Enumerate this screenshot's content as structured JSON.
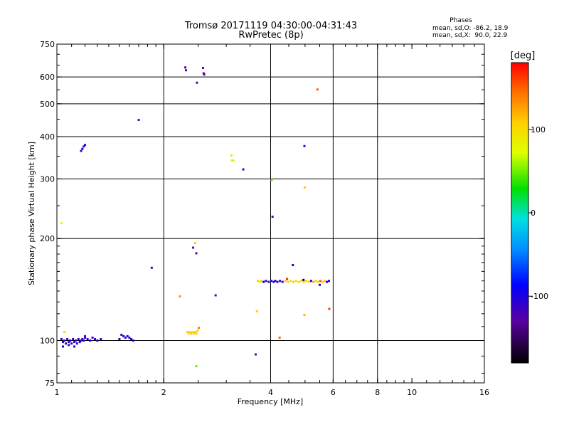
{
  "chart_data": {
    "type": "scatter",
    "title": "Tromsø 20171119 04:30:00-04:31:43",
    "subtitle": "RwPretec (8p)",
    "xlabel": "Frequency [MHz]",
    "ylabel": "Stationary phase Virtual Height [km]",
    "x_scale": "log",
    "y_scale": "log",
    "xlim": [
      1,
      16
    ],
    "ylim": [
      75,
      750
    ],
    "x_ticks": [
      1,
      2,
      4,
      6,
      8,
      10,
      16
    ],
    "x_tick_labels": [
      "1",
      "2",
      "4",
      "6",
      "8",
      "10",
      "16"
    ],
    "x_gridlines": [
      2,
      4,
      6,
      8
    ],
    "y_ticks": [
      75,
      100,
      200,
      300,
      400,
      500,
      600,
      750
    ],
    "y_tick_labels": [
      "75",
      "100",
      "200",
      "300",
      "400",
      "500",
      "600",
      "750"
    ],
    "y_gridlines": [
      100,
      200,
      300,
      400,
      500,
      600
    ],
    "grid": true,
    "phase_box": {
      "heading": "Phases",
      "line_o": "mean, sd,O: -86.2, 18.9",
      "line_x": "mean, sd,X:  90.0, 22.9"
    },
    "colorbar": {
      "label": "[deg]",
      "range": [
        -180,
        180
      ],
      "ticks": [
        100,
        0,
        -100
      ],
      "tick_labels": [
        "100",
        "0",
        "-100"
      ]
    },
    "points": [
      {
        "x": 1.03,
        "y": 101,
        "phase": -110
      },
      {
        "x": 1.04,
        "y": 99,
        "phase": -105
      },
      {
        "x": 1.05,
        "y": 100,
        "phase": -115
      },
      {
        "x": 1.06,
        "y": 98,
        "phase": -100
      },
      {
        "x": 1.07,
        "y": 101,
        "phase": -120
      },
      {
        "x": 1.08,
        "y": 99,
        "phase": -110
      },
      {
        "x": 1.09,
        "y": 100,
        "phase": -95
      },
      {
        "x": 1.1,
        "y": 98,
        "phase": -108
      },
      {
        "x": 1.11,
        "y": 101,
        "phase": -112
      },
      {
        "x": 1.12,
        "y": 99,
        "phase": -102
      },
      {
        "x": 1.13,
        "y": 100,
        "phase": -118
      },
      {
        "x": 1.14,
        "y": 98,
        "phase": -104
      },
      {
        "x": 1.15,
        "y": 101,
        "phase": -110
      },
      {
        "x": 1.16,
        "y": 99,
        "phase": -96
      },
      {
        "x": 1.17,
        "y": 100,
        "phase": -106
      },
      {
        "x": 1.18,
        "y": 101,
        "phase": -112
      },
      {
        "x": 1.19,
        "y": 100,
        "phase": -100
      },
      {
        "x": 1.2,
        "y": 102,
        "phase": -108
      },
      {
        "x": 1.22,
        "y": 101,
        "phase": -104
      },
      {
        "x": 1.24,
        "y": 100,
        "phase": -98
      },
      {
        "x": 1.26,
        "y": 102,
        "phase": -106
      },
      {
        "x": 1.28,
        "y": 101,
        "phase": -110
      },
      {
        "x": 1.3,
        "y": 100,
        "phase": -102
      },
      {
        "x": 1.33,
        "y": 101,
        "phase": -108
      },
      {
        "x": 1.04,
        "y": 96,
        "phase": -110
      },
      {
        "x": 1.08,
        "y": 97,
        "phase": -118
      },
      {
        "x": 1.12,
        "y": 96,
        "phase": -112
      },
      {
        "x": 1.05,
        "y": 106,
        "phase": 100
      },
      {
        "x": 1.2,
        "y": 103,
        "phase": -130
      },
      {
        "x": 1.52,
        "y": 104,
        "phase": -110
      },
      {
        "x": 1.54,
        "y": 103,
        "phase": -100
      },
      {
        "x": 1.56,
        "y": 102,
        "phase": -108
      },
      {
        "x": 1.58,
        "y": 103,
        "phase": -104
      },
      {
        "x": 1.6,
        "y": 102,
        "phase": -112
      },
      {
        "x": 1.62,
        "y": 101,
        "phase": -106
      },
      {
        "x": 1.64,
        "y": 100,
        "phase": -98
      },
      {
        "x": 1.5,
        "y": 101,
        "phase": -115
      },
      {
        "x": 1.03,
        "y": 222,
        "phase": 80
      },
      {
        "x": 1.17,
        "y": 363,
        "phase": -110
      },
      {
        "x": 1.18,
        "y": 368,
        "phase": -105
      },
      {
        "x": 1.19,
        "y": 374,
        "phase": -115
      },
      {
        "x": 1.2,
        "y": 378,
        "phase": -100
      },
      {
        "x": 1.7,
        "y": 448,
        "phase": -130
      },
      {
        "x": 1.85,
        "y": 164,
        "phase": -120
      },
      {
        "x": 2.22,
        "y": 135,
        "phase": 130
      },
      {
        "x": 2.33,
        "y": 106,
        "phase": 105
      },
      {
        "x": 2.35,
        "y": 105,
        "phase": 110
      },
      {
        "x": 2.37,
        "y": 106,
        "phase": 98
      },
      {
        "x": 2.39,
        "y": 105,
        "phase": 112
      },
      {
        "x": 2.41,
        "y": 106,
        "phase": 104
      },
      {
        "x": 2.43,
        "y": 105,
        "phase": 108
      },
      {
        "x": 2.45,
        "y": 106,
        "phase": 100
      },
      {
        "x": 2.47,
        "y": 105,
        "phase": 115
      },
      {
        "x": 2.49,
        "y": 107,
        "phase": 106
      },
      {
        "x": 2.51,
        "y": 109,
        "phase": 140
      },
      {
        "x": 2.47,
        "y": 84,
        "phase": 50
      },
      {
        "x": 2.42,
        "y": 188,
        "phase": -130
      },
      {
        "x": 2.45,
        "y": 194,
        "phase": 110
      },
      {
        "x": 2.47,
        "y": 181,
        "phase": -130
      },
      {
        "x": 2.3,
        "y": 640,
        "phase": -130
      },
      {
        "x": 2.31,
        "y": 628,
        "phase": -130
      },
      {
        "x": 2.48,
        "y": 577,
        "phase": -130
      },
      {
        "x": 2.58,
        "y": 638,
        "phase": -130
      },
      {
        "x": 2.59,
        "y": 615,
        "phase": -130
      },
      {
        "x": 2.6,
        "y": 610,
        "phase": -130
      },
      {
        "x": 2.8,
        "y": 136,
        "phase": -130
      },
      {
        "x": 3.1,
        "y": 352,
        "phase": 100
      },
      {
        "x": 3.11,
        "y": 340,
        "phase": 80
      },
      {
        "x": 3.14,
        "y": 340,
        "phase": 90
      },
      {
        "x": 3.35,
        "y": 320,
        "phase": -110
      },
      {
        "x": 3.63,
        "y": 91,
        "phase": -130
      },
      {
        "x": 3.66,
        "y": 122,
        "phase": 110
      },
      {
        "x": 3.68,
        "y": 150,
        "phase": 105
      },
      {
        "x": 3.72,
        "y": 149,
        "phase": 80
      },
      {
        "x": 3.76,
        "y": 150,
        "phase": 100
      },
      {
        "x": 3.82,
        "y": 149,
        "phase": -100
      },
      {
        "x": 3.88,
        "y": 150,
        "phase": -110
      },
      {
        "x": 3.95,
        "y": 149,
        "phase": -105
      },
      {
        "x": 4.02,
        "y": 150,
        "phase": -95
      },
      {
        "x": 4.08,
        "y": 149,
        "phase": -110
      },
      {
        "x": 4.12,
        "y": 150,
        "phase": -100
      },
      {
        "x": 4.18,
        "y": 149,
        "phase": -108
      },
      {
        "x": 4.25,
        "y": 150,
        "phase": -112
      },
      {
        "x": 4.32,
        "y": 149,
        "phase": -104
      },
      {
        "x": 4.4,
        "y": 150,
        "phase": 110
      },
      {
        "x": 4.48,
        "y": 149,
        "phase": 100
      },
      {
        "x": 4.56,
        "y": 150,
        "phase": 106
      },
      {
        "x": 4.64,
        "y": 149,
        "phase": 112
      },
      {
        "x": 4.72,
        "y": 150,
        "phase": 98
      },
      {
        "x": 4.8,
        "y": 149,
        "phase": 108
      },
      {
        "x": 4.88,
        "y": 150,
        "phase": 104
      },
      {
        "x": 4.96,
        "y": 149,
        "phase": 110
      },
      {
        "x": 5.04,
        "y": 150,
        "phase": 102
      },
      {
        "x": 5.12,
        "y": 149,
        "phase": 106
      },
      {
        "x": 5.2,
        "y": 150,
        "phase": -105
      },
      {
        "x": 5.28,
        "y": 149,
        "phase": 120
      },
      {
        "x": 5.36,
        "y": 150,
        "phase": 110
      },
      {
        "x": 5.44,
        "y": 149,
        "phase": 100
      },
      {
        "x": 5.52,
        "y": 150,
        "phase": 150
      },
      {
        "x": 5.6,
        "y": 149,
        "phase": 108
      },
      {
        "x": 5.68,
        "y": 150,
        "phase": 104
      },
      {
        "x": 5.76,
        "y": 149,
        "phase": -110
      },
      {
        "x": 5.84,
        "y": 150,
        "phase": -100
      },
      {
        "x": 5.5,
        "y": 146,
        "phase": -105
      },
      {
        "x": 4.45,
        "y": 152,
        "phase": 170
      },
      {
        "x": 4.95,
        "y": 151,
        "phase": -170
      },
      {
        "x": 4.03,
        "y": 298,
        "phase": 50
      },
      {
        "x": 4.05,
        "y": 232,
        "phase": -130
      },
      {
        "x": 4.24,
        "y": 102,
        "phase": 150
      },
      {
        "x": 4.62,
        "y": 167,
        "phase": -90
      },
      {
        "x": 4.98,
        "y": 119,
        "phase": 120
      },
      {
        "x": 4.98,
        "y": 375,
        "phase": -80
      },
      {
        "x": 4.99,
        "y": 283,
        "phase": 110
      },
      {
        "x": 5.42,
        "y": 551,
        "phase": 150
      },
      {
        "x": 5.85,
        "y": 124,
        "phase": 160
      }
    ]
  }
}
